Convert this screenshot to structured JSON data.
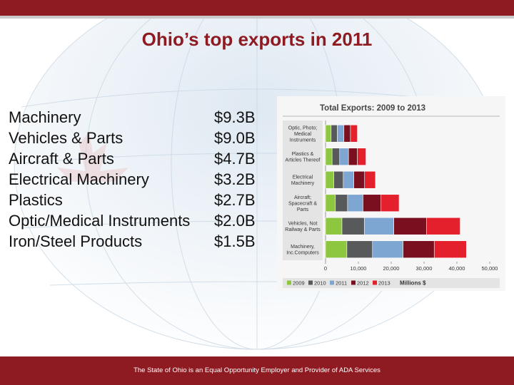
{
  "slide": {
    "title": "Ohio’s top exports in 2011",
    "footer": "The State of Ohio is an Equal Opportunity Employer and Provider of ADA Services"
  },
  "exports_2011": [
    {
      "name": "Machinery",
      "value": "$9.3B"
    },
    {
      "name": "Vehicles & Parts",
      "value": "$9.0B"
    },
    {
      "name": "Aircraft & Parts",
      "value": "$4.7B"
    },
    {
      "name": "Electrical Machinery",
      "value": "$3.2B"
    },
    {
      "name": "Plastics",
      "value": "$2.7B"
    },
    {
      "name": "Optic/Medical Instruments",
      "value": "$2.0B"
    },
    {
      "name": "Iron/Steel Products",
      "value": "$1.5B"
    }
  ],
  "colors": {
    "brand": "#8e1b22",
    "series": [
      "#8dc63f",
      "#58595b",
      "#7ea6d3",
      "#7a0f1f",
      "#e3202b"
    ]
  },
  "chart_data": {
    "type": "bar",
    "orientation": "horizontal",
    "stacked": true,
    "title": "Total Exports: 2009 to 2013",
    "xlabel": "Millions $",
    "xlim": [
      0,
      50000
    ],
    "xticks": [
      "0",
      "10,000",
      "20,000",
      "30,000",
      "40,000",
      "50,000"
    ],
    "tick_values": [
      0,
      10000,
      20000,
      30000,
      40000,
      50000
    ],
    "legend_position": "bottom",
    "categories": [
      [
        "Optic, Photo;",
        "Medical",
        "Instruments"
      ],
      [
        "Plastics &",
        "Articles Thereof"
      ],
      [
        "Electrical",
        "Machinery"
      ],
      [
        "Aircraft;",
        "Spacecraft &",
        "Parts"
      ],
      [
        "Vehicles, Not",
        "Railway & Parts"
      ],
      [
        "Machinery,",
        "Inc.Computers"
      ]
    ],
    "series": [
      {
        "name": "2009",
        "values": [
          1700,
          2000,
          2500,
          3000,
          5000,
          6500
        ]
      },
      {
        "name": "2010",
        "values": [
          1900,
          2300,
          2900,
          3700,
          6800,
          7800
        ]
      },
      {
        "name": "2011",
        "values": [
          2000,
          2700,
          3200,
          4700,
          9000,
          9300
        ]
      },
      {
        "name": "2012",
        "values": [
          2000,
          2700,
          3300,
          5500,
          10000,
          9500
        ]
      },
      {
        "name": "2013",
        "values": [
          2100,
          2600,
          3300,
          5500,
          10200,
          9800
        ]
      }
    ]
  }
}
